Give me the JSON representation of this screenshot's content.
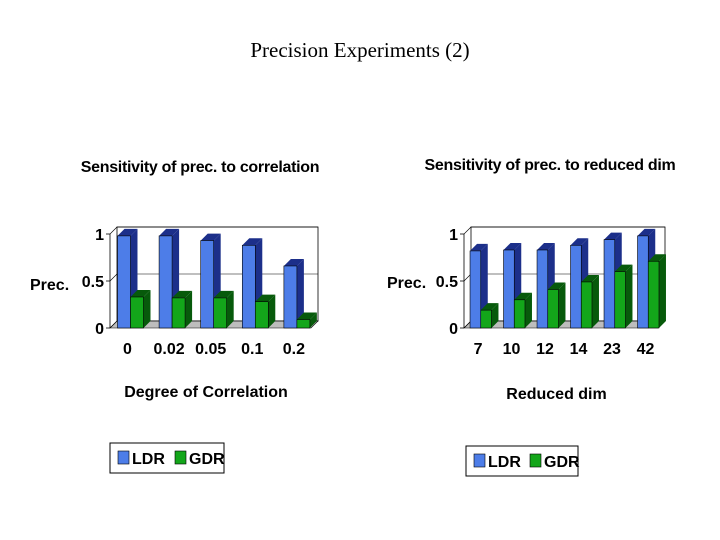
{
  "slide": {
    "title": "Precision Experiments (2)"
  },
  "colors": {
    "ldr": "#4d7de8",
    "ldr_dark": "#1c2f8a",
    "gdr": "#13a61a",
    "gdr_dark": "#075a0b",
    "floor": "#bdbdbd"
  },
  "chart_data": [
    {
      "type": "bar",
      "title": "Sensitivity of prec. to correlation",
      "xlabel": "Degree of Correlation",
      "ylabel": "Prec.",
      "categories": [
        "0",
        "0.02",
        "0.05",
        "0.1",
        "0.2"
      ],
      "series": [
        {
          "name": "LDR",
          "values": [
            0.98,
            0.98,
            0.93,
            0.88,
            0.66
          ]
        },
        {
          "name": "GDR",
          "values": [
            0.33,
            0.32,
            0.32,
            0.28,
            0.09
          ]
        }
      ],
      "ylim": [
        0,
        1
      ],
      "yticks": [
        "1",
        "0.5",
        "0"
      ],
      "grid": true,
      "legend": "bottom"
    },
    {
      "type": "bar",
      "title": "Sensitivity of prec. to reduced dim",
      "xlabel": "Reduced dim",
      "ylabel": "Prec.",
      "categories": [
        "7",
        "10",
        "12",
        "14",
        "23",
        "42"
      ],
      "series": [
        {
          "name": "LDR",
          "values": [
            0.82,
            0.83,
            0.83,
            0.88,
            0.94,
            0.98
          ]
        },
        {
          "name": "GDR",
          "values": [
            0.19,
            0.3,
            0.41,
            0.49,
            0.6,
            0.71
          ]
        }
      ],
      "ylim": [
        0,
        1
      ],
      "yticks": [
        "1",
        "0.5",
        "0"
      ],
      "grid": true,
      "legend": "bottom"
    }
  ]
}
